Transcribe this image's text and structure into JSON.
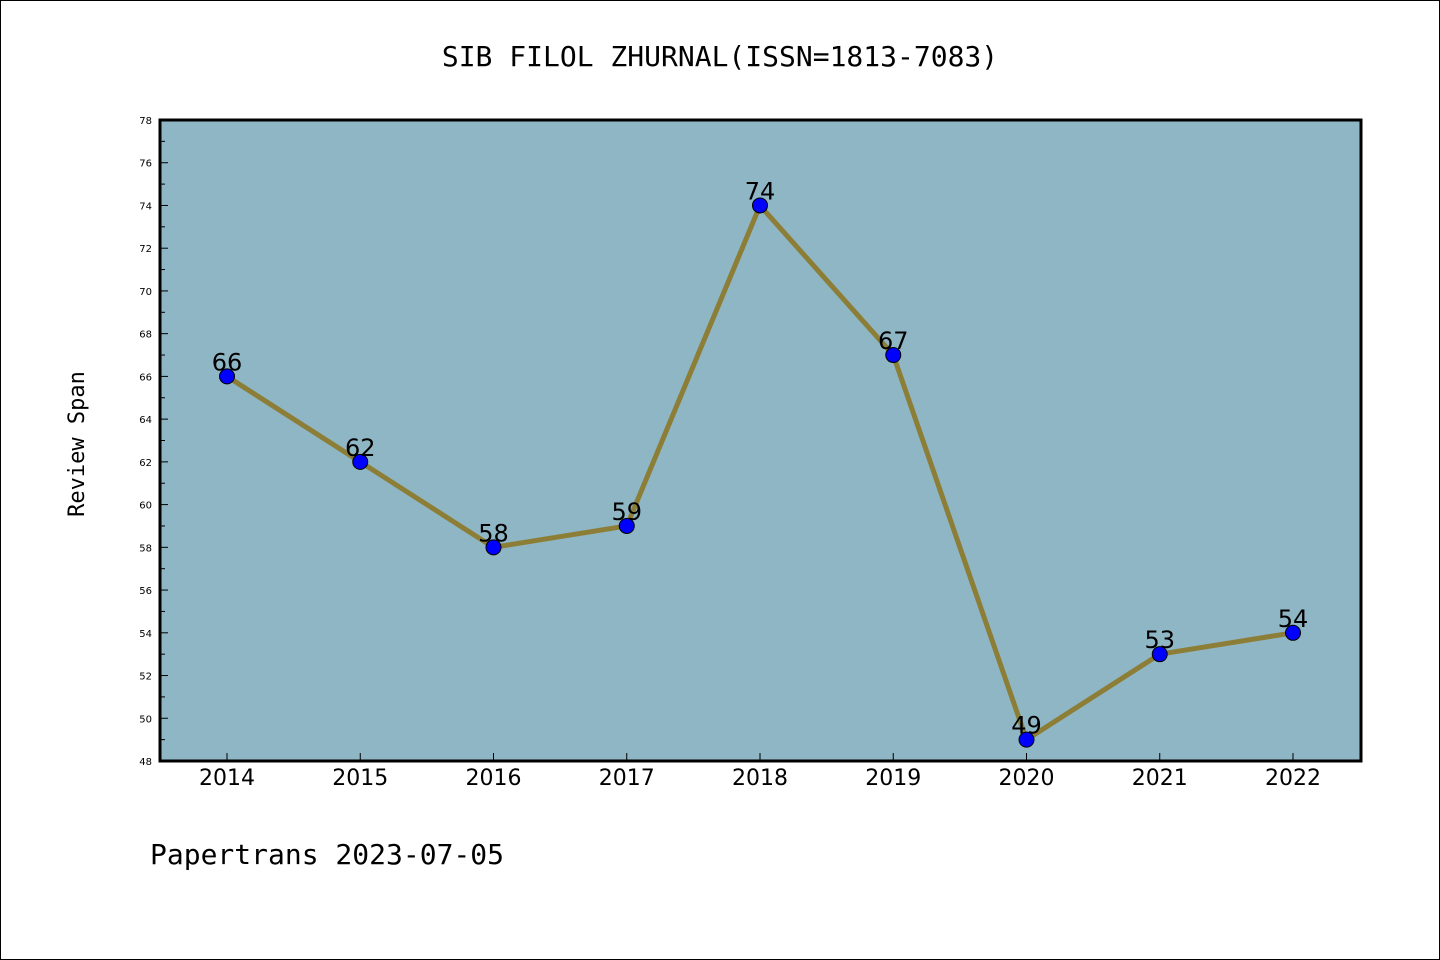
{
  "chart_data": {
    "type": "line",
    "title": "SIB FILOL ZHURNAL(ISSN=1813-7083)",
    "xlabel": "",
    "ylabel": "Review Span",
    "categories": [
      "2014",
      "2015",
      "2016",
      "2017",
      "2018",
      "2019",
      "2020",
      "2021",
      "2022"
    ],
    "series": [
      {
        "values": [
          66,
          62,
          58,
          59,
          74,
          67,
          49,
          53,
          54
        ]
      }
    ],
    "ylim": [
      48,
      78
    ],
    "ytick_labels": [
      "48",
      "50",
      "52",
      "54",
      "56",
      "58",
      "60",
      "62",
      "64",
      "66",
      "68",
      "70",
      "72",
      "74",
      "76",
      "78"
    ],
    "data_labels": [
      "66",
      "62",
      "58",
      "59",
      "74",
      "67",
      "49",
      "53",
      "54"
    ],
    "grid": false,
    "colors": {
      "plot_background": "#8fb6c4",
      "line": "#8c7e36",
      "marker": "#0000ff"
    }
  },
  "footer": {
    "text": "Papertrans 2023-07-05"
  }
}
